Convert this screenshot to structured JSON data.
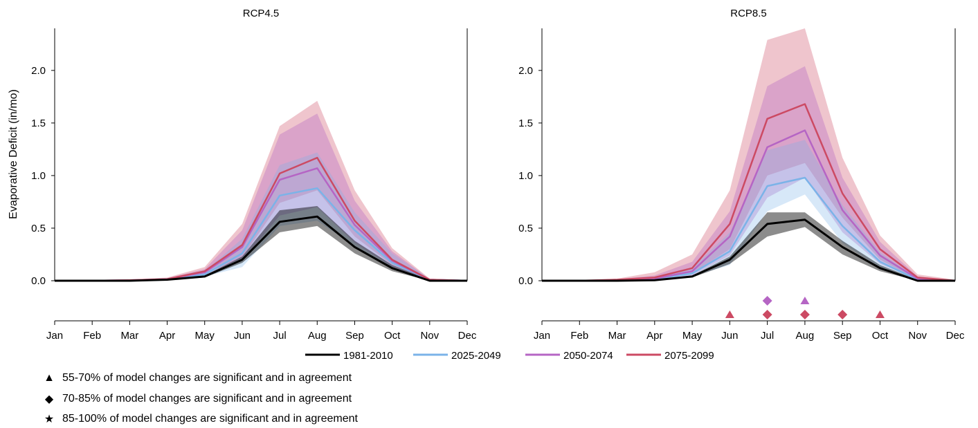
{
  "ylabel": "Evaporative Deficit (in/mo)",
  "months": [
    "Jan",
    "Feb",
    "Mar",
    "Apr",
    "May",
    "Jun",
    "Jul",
    "Aug",
    "Sep",
    "Oct",
    "Nov",
    "Dec"
  ],
  "yticks": [
    "0.0",
    "0.5",
    "1.0",
    "1.5",
    "2.0"
  ],
  "legend": {
    "series": [
      {
        "name": "1981-2010",
        "color": "#000000"
      },
      {
        "name": "2025-2049",
        "color": "#7bb3e8"
      },
      {
        "name": "2050-2074",
        "color": "#b565c4"
      },
      {
        "name": "2075-2099",
        "color": "#cc4a63"
      }
    ],
    "significance": [
      {
        "symbol": "▲",
        "label": "55-70% of model changes are significant and in agreement"
      },
      {
        "symbol": "◆",
        "label": "70-85% of model changes are significant and in agreement"
      },
      {
        "symbol": "★",
        "label": "85-100% of model changes are significant and in agreement"
      }
    ]
  },
  "chart_data": [
    {
      "type": "line",
      "title": "RCP4.5",
      "x": [
        "Jan",
        "Feb",
        "Mar",
        "Apr",
        "May",
        "Jun",
        "Jul",
        "Aug",
        "Sep",
        "Oct",
        "Nov",
        "Dec"
      ],
      "ylim": [
        0,
        2.4
      ],
      "ylabel": "Evaporative Deficit (in/mo)",
      "series": [
        {
          "name": "1981-2010",
          "color": "#000000",
          "values": [
            0,
            0,
            0,
            0.01,
            0.04,
            0.2,
            0.56,
            0.61,
            0.32,
            0.12,
            0,
            0
          ],
          "lower": [
            0,
            0,
            0,
            0.005,
            0.03,
            0.17,
            0.46,
            0.52,
            0.26,
            0.09,
            0,
            0
          ],
          "upper": [
            0,
            0,
            0,
            0.015,
            0.05,
            0.23,
            0.67,
            0.71,
            0.38,
            0.15,
            0.01,
            0
          ]
        },
        {
          "name": "2025-2049",
          "color": "#7bb3e8",
          "values": [
            0,
            0,
            0,
            0.01,
            0.06,
            0.26,
            0.81,
            0.88,
            0.48,
            0.17,
            0.01,
            0
          ],
          "lower": [
            0,
            0,
            0,
            0.005,
            0.04,
            0.13,
            0.52,
            0.57,
            0.33,
            0.11,
            0,
            0
          ],
          "upper": [
            0,
            0,
            0,
            0.02,
            0.09,
            0.4,
            1.1,
            1.22,
            0.65,
            0.26,
            0.015,
            0
          ]
        },
        {
          "name": "2050-2074",
          "color": "#b565c4",
          "values": [
            0,
            0,
            0.005,
            0.015,
            0.08,
            0.32,
            0.96,
            1.07,
            0.53,
            0.19,
            0.01,
            0
          ],
          "lower": [
            0,
            0,
            0,
            0.01,
            0.05,
            0.19,
            0.62,
            0.7,
            0.36,
            0.13,
            0.005,
            0
          ],
          "upper": [
            0,
            0,
            0.01,
            0.025,
            0.11,
            0.48,
            1.39,
            1.59,
            0.76,
            0.28,
            0.015,
            0
          ]
        },
        {
          "name": "2075-2099",
          "color": "#cc4a63",
          "values": [
            0,
            0,
            0.005,
            0.015,
            0.09,
            0.34,
            1.02,
            1.17,
            0.57,
            0.2,
            0.01,
            0
          ],
          "lower": [
            0,
            0,
            0,
            0.01,
            0.06,
            0.22,
            0.74,
            0.86,
            0.42,
            0.15,
            0.005,
            0
          ],
          "upper": [
            0,
            0,
            0.01,
            0.03,
            0.13,
            0.54,
            1.47,
            1.71,
            0.86,
            0.31,
            0.02,
            0.005
          ]
        }
      ],
      "markers": []
    },
    {
      "type": "line",
      "title": "RCP8.5",
      "x": [
        "Jan",
        "Feb",
        "Mar",
        "Apr",
        "May",
        "Jun",
        "Jul",
        "Aug",
        "Sep",
        "Oct",
        "Nov",
        "Dec"
      ],
      "ylim": [
        0,
        2.4
      ],
      "series": [
        {
          "name": "1981-2010",
          "color": "#000000",
          "values": [
            0,
            0,
            0,
            0.005,
            0.04,
            0.2,
            0.54,
            0.58,
            0.32,
            0.12,
            0,
            0
          ],
          "lower": [
            0,
            0,
            0,
            0.003,
            0.03,
            0.16,
            0.42,
            0.51,
            0.25,
            0.09,
            0,
            0
          ],
          "upper": [
            0,
            0,
            0,
            0.01,
            0.05,
            0.23,
            0.65,
            0.65,
            0.38,
            0.15,
            0.01,
            0
          ]
        },
        {
          "name": "2025-2049",
          "color": "#7bb3e8",
          "values": [
            0,
            0,
            0.005,
            0.015,
            0.07,
            0.28,
            0.9,
            0.98,
            0.52,
            0.18,
            0.01,
            0
          ],
          "lower": [
            0,
            0,
            0,
            0.01,
            0.04,
            0.15,
            0.66,
            0.82,
            0.36,
            0.12,
            0,
            0
          ],
          "upper": [
            0,
            0,
            0.01,
            0.03,
            0.12,
            0.46,
            1.24,
            1.34,
            0.72,
            0.27,
            0.02,
            0
          ]
        },
        {
          "name": "2050-2074",
          "color": "#b565c4",
          "values": [
            0,
            0,
            0.005,
            0.02,
            0.09,
            0.42,
            1.27,
            1.43,
            0.67,
            0.24,
            0.02,
            0
          ],
          "lower": [
            0,
            0,
            0,
            0.01,
            0.05,
            0.24,
            0.79,
            0.98,
            0.46,
            0.16,
            0.01,
            0
          ],
          "upper": [
            0,
            0,
            0.015,
            0.05,
            0.18,
            0.66,
            1.85,
            2.04,
            0.98,
            0.37,
            0.04,
            0.005
          ]
        },
        {
          "name": "2075-2099",
          "color": "#cc4a63",
          "values": [
            0,
            0,
            0.01,
            0.03,
            0.12,
            0.54,
            1.54,
            1.68,
            0.83,
            0.3,
            0.03,
            0
          ],
          "lower": [
            0,
            0,
            0,
            0.01,
            0.07,
            0.3,
            1.0,
            1.12,
            0.6,
            0.2,
            0.01,
            0
          ],
          "upper": [
            0,
            0,
            0.02,
            0.08,
            0.25,
            0.86,
            2.29,
            2.4,
            1.17,
            0.43,
            0.06,
            0.01
          ]
        }
      ],
      "markers": [
        {
          "month": "Jun",
          "series": "2075-2099",
          "symbol": "triangle",
          "row": 2
        },
        {
          "month": "Jul",
          "series": "2050-2074",
          "symbol": "diamond",
          "row": 1
        },
        {
          "month": "Jul",
          "series": "2075-2099",
          "symbol": "diamond",
          "row": 2
        },
        {
          "month": "Aug",
          "series": "2050-2074",
          "symbol": "triangle",
          "row": 1
        },
        {
          "month": "Aug",
          "series": "2075-2099",
          "symbol": "diamond",
          "row": 2
        },
        {
          "month": "Sep",
          "series": "2075-2099",
          "symbol": "diamond",
          "row": 2
        },
        {
          "month": "Oct",
          "series": "2075-2099",
          "symbol": "triangle",
          "row": 2
        }
      ]
    }
  ]
}
